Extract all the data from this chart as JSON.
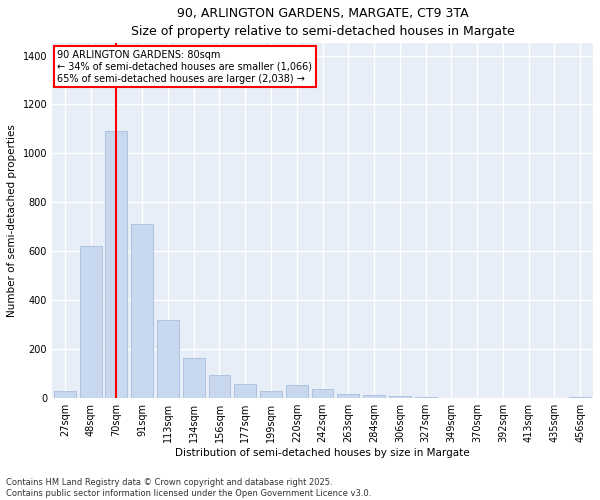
{
  "title1": "90, ARLINGTON GARDENS, MARGATE, CT9 3TA",
  "title2": "Size of property relative to semi-detached houses in Margate",
  "xlabel": "Distribution of semi-detached houses by size in Margate",
  "ylabel": "Number of semi-detached properties",
  "categories": [
    "27sqm",
    "48sqm",
    "70sqm",
    "91sqm",
    "113sqm",
    "134sqm",
    "156sqm",
    "177sqm",
    "199sqm",
    "220sqm",
    "242sqm",
    "263sqm",
    "284sqm",
    "306sqm",
    "327sqm",
    "349sqm",
    "370sqm",
    "392sqm",
    "413sqm",
    "435sqm",
    "456sqm"
  ],
  "values": [
    30,
    620,
    1090,
    710,
    320,
    165,
    95,
    60,
    30,
    55,
    38,
    18,
    12,
    8,
    5,
    3,
    2,
    1,
    1,
    0,
    5
  ],
  "bar_color": "#c8d8ee",
  "bar_edgecolor": "#a0b8d8",
  "red_line_x": 2.0,
  "annotation_text": "90 ARLINGTON GARDENS: 80sqm\n← 34% of semi-detached houses are smaller (1,066)\n65% of semi-detached houses are larger (2,038) →",
  "ylim": [
    0,
    1450
  ],
  "yticks": [
    0,
    200,
    400,
    600,
    800,
    1000,
    1200,
    1400
  ],
  "background_color": "#ffffff",
  "plot_bg_color": "#e8eef8",
  "grid_color": "#ffffff",
  "footer": "Contains HM Land Registry data © Crown copyright and database right 2025.\nContains public sector information licensed under the Open Government Licence v3.0."
}
